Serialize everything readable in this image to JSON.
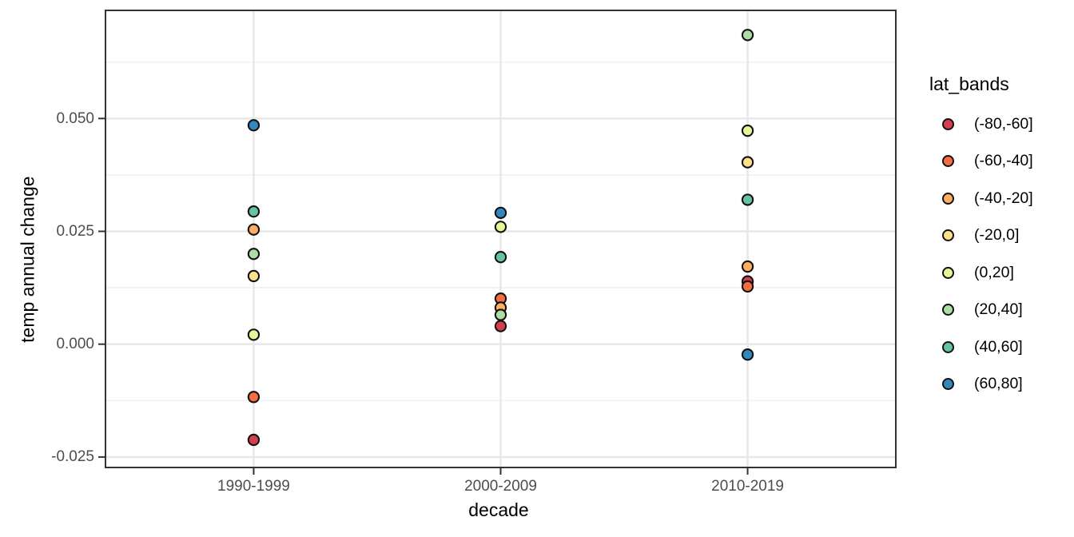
{
  "chart_data": {
    "type": "scatter",
    "title": "",
    "xlabel": "decade",
    "ylabel": "temp annual change",
    "legend_title": "lat_bands",
    "legend_position": "right",
    "grid": true,
    "categories": [
      "1990-1999",
      "2000-2009",
      "2010-2019"
    ],
    "y_ticks": [
      {
        "label": "0.050",
        "value": 0.05
      },
      {
        "label": "0.025",
        "value": 0.025
      },
      {
        "label": "0.000",
        "value": 0.0
      },
      {
        "label": "-0.025",
        "value": -0.025
      }
    ],
    "y_minor_ticks": [
      0.0625,
      0.0375,
      0.0125,
      -0.0125
    ],
    "ylim": [
      -0.0273,
      0.0739
    ],
    "series": [
      {
        "name": "(-80,-60]",
        "color": "#d53e4f",
        "values": [
          -0.0212,
          0.004,
          0.0139
        ]
      },
      {
        "name": "(-60,-40]",
        "color": "#f46d43",
        "values": [
          -0.0117,
          0.0101,
          0.0128
        ]
      },
      {
        "name": "(-40,-20]",
        "color": "#fdae61",
        "values": [
          0.0254,
          0.0081,
          0.0172
        ]
      },
      {
        "name": "(-20,0]",
        "color": "#fee08b",
        "values": [
          0.0151,
          null,
          0.0403
        ]
      },
      {
        "name": "(0,20]",
        "color": "#e6f598",
        "values": [
          0.0021,
          0.026,
          0.0473
        ]
      },
      {
        "name": "(20,40]",
        "color": "#abdda4",
        "values": [
          0.02,
          0.0065,
          0.0685
        ]
      },
      {
        "name": "(40,60]",
        "color": "#66c2a5",
        "values": [
          0.0294,
          0.0193,
          0.032
        ]
      },
      {
        "name": "(60,80]",
        "color": "#3288bd",
        "values": [
          0.0485,
          0.0291,
          -0.0023
        ]
      }
    ],
    "style": {
      "panel_border_color": "#333333",
      "major_grid_color": "#e7e7e7",
      "minor_grid_color": "#f1f1f1",
      "point_stroke_color": "#111111",
      "tick_label_color": "#4d4d4d"
    }
  }
}
